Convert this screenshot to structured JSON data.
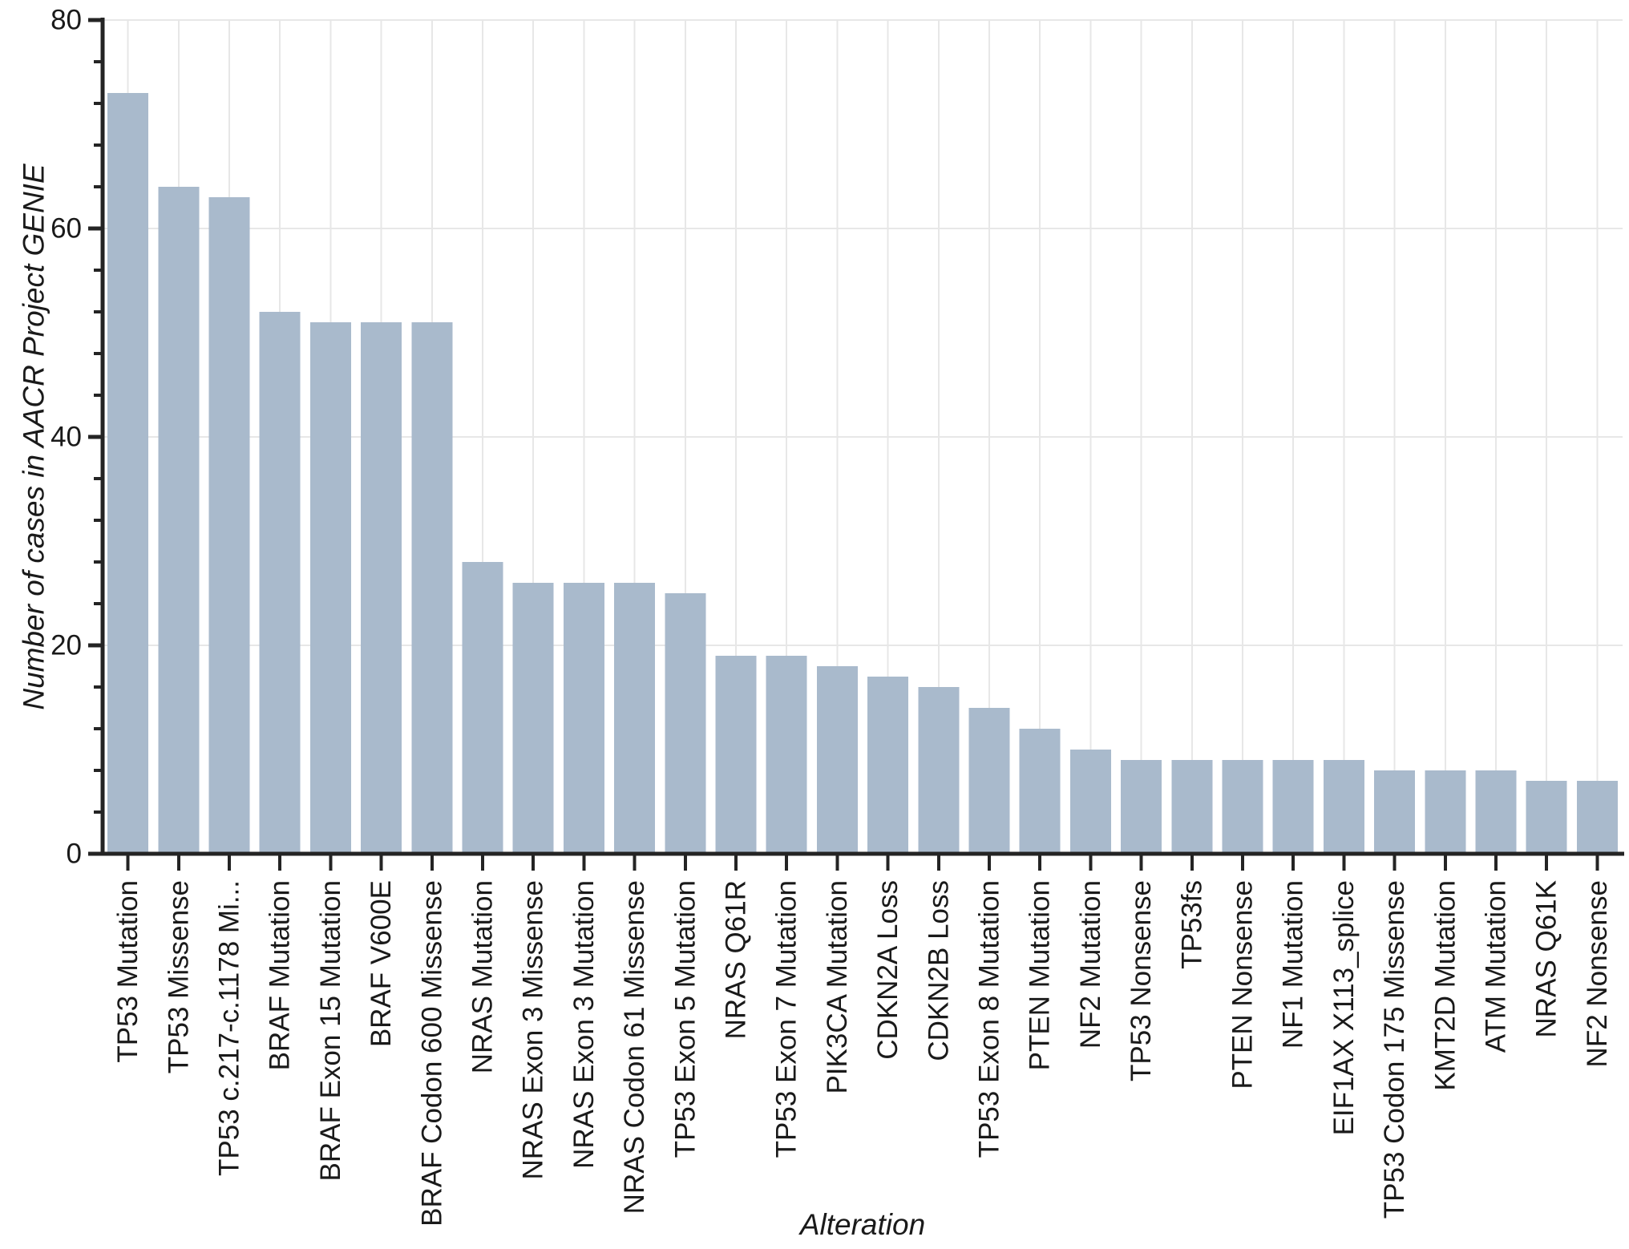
{
  "chart_data": {
    "type": "bar",
    "title": "",
    "xlabel": "Alteration",
    "ylabel": "Number of cases in AACR Project GENIE",
    "categories": [
      "TP53 Mutation",
      "TP53 Missense",
      "TP53 c.217-c.1178 Mi...",
      "BRAF Mutation",
      "BRAF Exon 15 Mutation",
      "BRAF V600E",
      "BRAF Codon 600 Missense",
      "NRAS Mutation",
      "NRAS Exon 3 Missense",
      "NRAS Exon 3 Mutation",
      "NRAS Codon 61 Missense",
      "TP53 Exon 5 Mutation",
      "NRAS Q61R",
      "TP53 Exon 7 Mutation",
      "PIK3CA Mutation",
      "CDKN2A Loss",
      "CDKN2B Loss",
      "TP53 Exon 8 Mutation",
      "PTEN Mutation",
      "NF2 Mutation",
      "TP53 Nonsense",
      "TP53fs",
      "PTEN Nonsense",
      "NF1 Mutation",
      "EIF1AX X113_splice",
      "TP53 Codon 175 Missense",
      "KMT2D Mutation",
      "ATM Mutation",
      "NRAS Q61K",
      "NF2 Nonsense"
    ],
    "values": [
      73,
      64,
      63,
      52,
      51,
      51,
      51,
      28,
      26,
      26,
      26,
      25,
      19,
      19,
      18,
      17,
      16,
      14,
      12,
      10,
      9,
      9,
      9,
      9,
      9,
      8,
      8,
      8,
      7,
      7
    ],
    "ylim": [
      0,
      80
    ],
    "yticks_major": [
      0,
      20,
      40,
      60,
      80
    ],
    "y_minor_step": 4,
    "grid": true,
    "legend": "none",
    "bar_color": "#a9bacc",
    "grid_color": "#e7e7e7",
    "axis_color": "#242424",
    "text_color": "#1a1a1a",
    "background": "#ffffff"
  }
}
